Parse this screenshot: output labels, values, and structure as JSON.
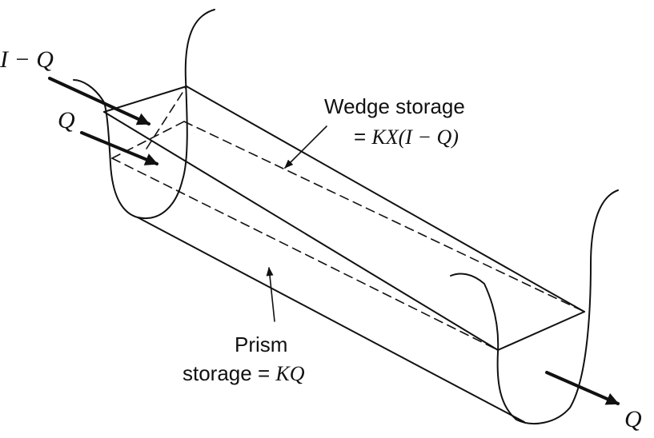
{
  "inflow": {
    "wedge_flow_label": "I − Q",
    "prism_flow_label": "Q"
  },
  "outflow": {
    "label": "Q"
  },
  "wedge": {
    "title": "Wedge storage",
    "formula_prefix": "= ",
    "formula": "KX(I − Q)"
  },
  "prism": {
    "title": "Prism",
    "formula_prefix": "storage = ",
    "formula": "KQ"
  }
}
